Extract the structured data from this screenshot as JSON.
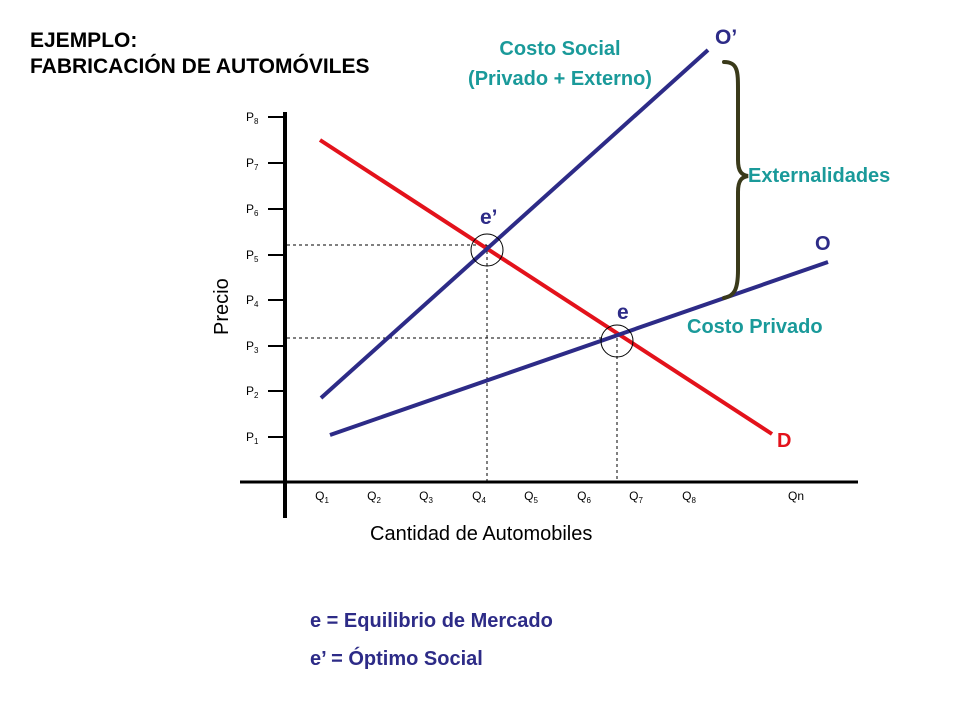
{
  "title": {
    "line1": "EJEMPLO:",
    "line2": "FABRICACIÓN DE AUTOMÓVILES"
  },
  "axes": {
    "y_label": "Precio",
    "x_label": "Cantidad de Automobiles",
    "y_ticks": [
      {
        "base": "P",
        "sub": "8"
      },
      {
        "base": "P",
        "sub": "7"
      },
      {
        "base": "P",
        "sub": "6"
      },
      {
        "base": "P",
        "sub": "5"
      },
      {
        "base": "P",
        "sub": "4"
      },
      {
        "base": "P",
        "sub": "3"
      },
      {
        "base": "P",
        "sub": "2"
      },
      {
        "base": "P",
        "sub": "1"
      }
    ],
    "x_ticks": [
      {
        "base": "Q",
        "sub": "1"
      },
      {
        "base": "Q",
        "sub": "2"
      },
      {
        "base": "Q",
        "sub": "3"
      },
      {
        "base": "Q",
        "sub": "4"
      },
      {
        "base": "Q",
        "sub": "5"
      },
      {
        "base": "Q",
        "sub": "6"
      },
      {
        "base": "Q",
        "sub": "7"
      },
      {
        "base": "Q",
        "sub": "8"
      },
      {
        "base": "Qn",
        "sub": ""
      }
    ]
  },
  "curves": {
    "social_cost_label_1": "Costo Social",
    "social_cost_label_2": "(Privado + Externo)",
    "social_cost_name": "O’",
    "private_cost_label": "Costo Privado",
    "private_cost_name": "O",
    "demand_name": "D",
    "externalities_label": "Externalidades"
  },
  "points": {
    "social_optimum": "e’",
    "market_equilibrium": "e"
  },
  "legend": {
    "line1": "e = Equilibrio de Mercado",
    "line2": "e’ = Óptimo Social"
  },
  "colors": {
    "supply": "#2d2b87",
    "demand": "#e3121b",
    "teal_text": "#1a9a9a",
    "brace": "#3a3a1a",
    "axis": "#000000"
  }
}
